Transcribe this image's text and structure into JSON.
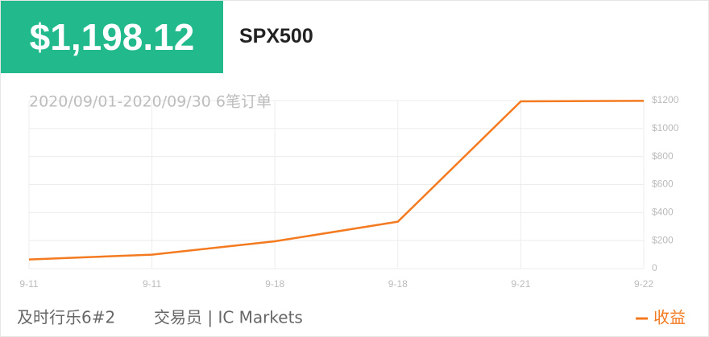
{
  "header": {
    "price": "$1,198.12",
    "symbol": "SPX500"
  },
  "chart_data": {
    "type": "line",
    "subtitle": "2020/09/01-2020/09/30 6笔订单",
    "categories": [
      "9-11",
      "9-11",
      "9-18",
      "9-18",
      "9-21",
      "9-22"
    ],
    "series": [
      {
        "name": "收益",
        "color": "#f47a20",
        "values": [
          65,
          100,
          195,
          335,
          1194,
          1198.12
        ]
      }
    ],
    "ylim": [
      0,
      1200
    ],
    "yticks": [
      0,
      {
        "value": 200,
        "label": "$200"
      },
      {
        "value": 400,
        "label": "$400"
      },
      {
        "value": 600,
        "label": "$600"
      },
      {
        "value": 800,
        "label": "$800"
      },
      {
        "value": 1000,
        "label": "$1000"
      },
      {
        "value": 1200,
        "label": "$1200"
      }
    ],
    "grid": true,
    "legend": "bottom-right"
  },
  "footer": {
    "account": "及时行乐6#2",
    "trader": "交易员 | IC Markets"
  }
}
